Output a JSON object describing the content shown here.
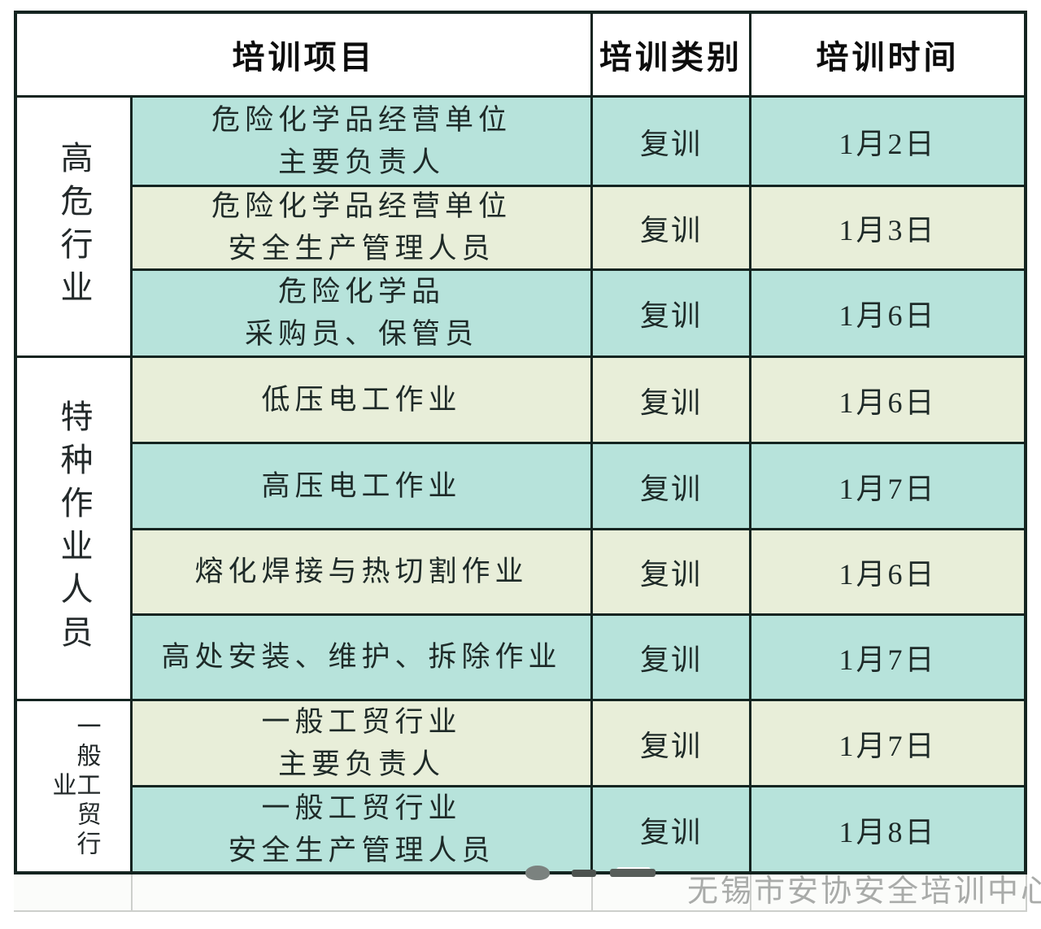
{
  "table": {
    "headers": [
      "培训项目",
      "培训类别",
      "培训时间"
    ],
    "groups": [
      {
        "label": "高危行业",
        "rowspan": 3
      },
      {
        "label": "特种作业人员",
        "rowspan": 4
      },
      {
        "label": "一般工贸行业",
        "rowspan": 2
      }
    ],
    "rows": [
      {
        "project_line1": "危险化学品经营单位",
        "project_line2": "主要负责人",
        "category": "复训",
        "time": "1月2日",
        "row_color": "#b7e3db"
      },
      {
        "project_line1": "危险化学品经营单位",
        "project_line2": "安全生产管理人员",
        "category": "复训",
        "time": "1月3日",
        "row_color": "#e8eed9"
      },
      {
        "project_line1": "危险化学品",
        "project_line2": "采购员、保管员",
        "category": "复训",
        "time": "1月6日",
        "row_color": "#b7e3db"
      },
      {
        "project_line1": "低压电工作业",
        "project_line2": "",
        "category": "复训",
        "time": "1月6日",
        "row_color": "#e8eed9"
      },
      {
        "project_line1": "高压电工作业",
        "project_line2": "",
        "category": "复训",
        "time": "1月7日",
        "row_color": "#b7e3db"
      },
      {
        "project_line1": "熔化焊接与热切割作业",
        "project_line2": "",
        "category": "复训",
        "time": "1月6日",
        "row_color": "#e8eed9"
      },
      {
        "project_line1": "高处安装、维护、拆除作业",
        "project_line2": "",
        "category": "复训",
        "time": "1月7日",
        "row_color": "#b7e3db"
      },
      {
        "project_line1": "一般工贸行业",
        "project_line2": "主要负责人",
        "category": "复训",
        "time": "1月7日",
        "row_color": "#e8eed9"
      },
      {
        "project_line1": "一般工贸行业",
        "project_line2": "安全生产管理人员",
        "category": "复训",
        "time": "1月8日",
        "row_color": "#b7e3db"
      }
    ]
  },
  "watermark": {
    "text": "无锡市安协安全培训中心"
  },
  "colors": {
    "row_teal": "#b7e3db",
    "row_green": "#e8eed9",
    "border_dark": "#142420",
    "border_light": "#cdcfcc",
    "watermark_gray": "#a9aba9"
  }
}
